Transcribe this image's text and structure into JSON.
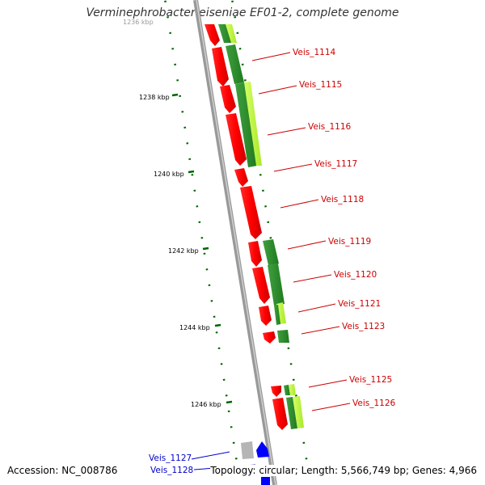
{
  "title": "Verminephrobacter eiseniae EF01-2, complete genome",
  "footer": {
    "accession": "Accession: NC_008786",
    "summary": "Topology: circular; Length: 5,566,749 bp; Genes: 4,966"
  },
  "ruler": {
    "top_label": "1236 kbp",
    "ticks": [
      "1238 kbp",
      "1240 kbp",
      "1242 kbp",
      "1244 kbp",
      "1246 kbp"
    ]
  },
  "gene_labels": {
    "right": [
      "Veis_1114",
      "Veis_1115",
      "Veis_1116",
      "Veis_1117",
      "Veis_1118",
      "Veis_1119",
      "Veis_1120",
      "Veis_1121",
      "Veis_1123",
      "Veis_1125",
      "Veis_1126"
    ],
    "left": [
      "Veis_1127",
      "Veis_1128"
    ]
  },
  "colors": {
    "cds": "#ff0000",
    "cog_dark": "#2e8b2e",
    "cog_light": "#bfff3f",
    "rna": "#0000ff",
    "label_red": "#cc0000",
    "label_blue": "#0000cc",
    "backbone": "#888888",
    "tick": "#006400"
  }
}
